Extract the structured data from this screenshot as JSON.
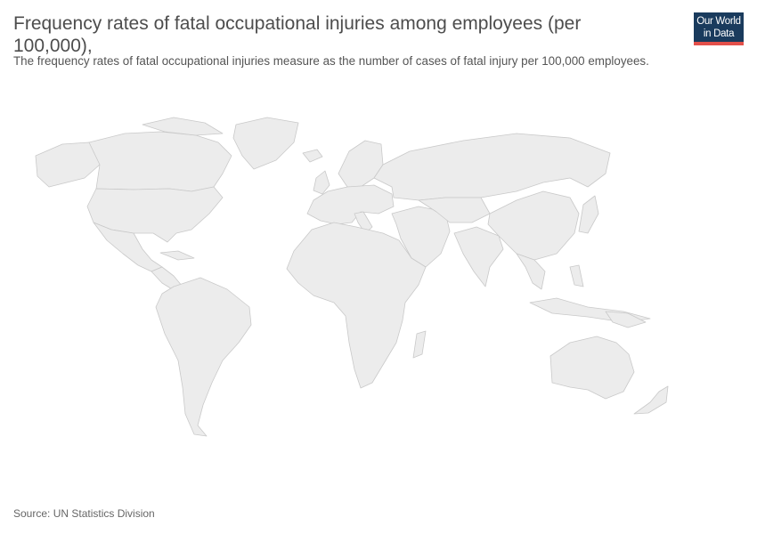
{
  "header": {
    "title": "Frequency rates of fatal occupational injuries among employees (per 100,000),",
    "subtitle": "The frequency rates of fatal occupational injuries measure as the number of cases of fatal injury per 100,000 employees."
  },
  "logo": {
    "line1": "Our World",
    "line2": "in Data"
  },
  "colors": {
    "land": "#ececec",
    "border": "#c9c9c9",
    "logo_bg": "#1a3b5d",
    "logo_bar": "#e3504a"
  },
  "footer": {
    "source": "Source: UN Statistics Division"
  }
}
